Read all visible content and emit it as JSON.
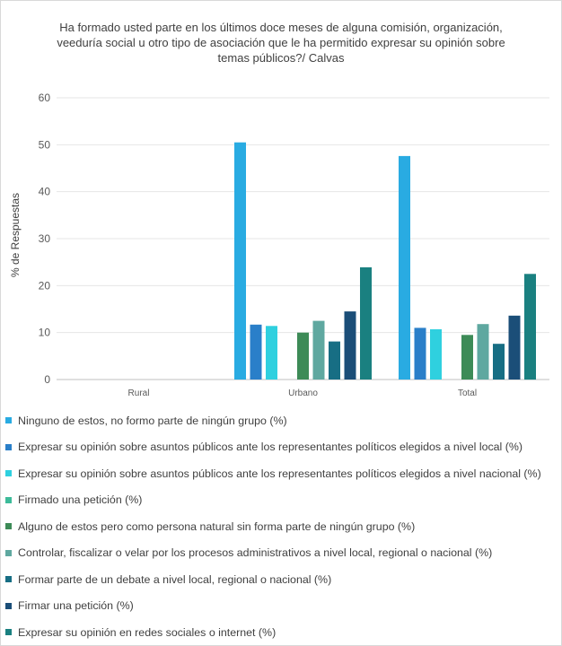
{
  "chart_data": {
    "type": "bar",
    "title": "Ha formado usted parte en los últimos doce meses de alguna comisión, organización,\nveeduría social u otro tipo de asociación que le ha permitido expresar su opinión sobre\ntemas públicos?/ Calvas",
    "ylabel": "% de Respuestas",
    "xlabel": "",
    "ylim": [
      0,
      60
    ],
    "yticks": [
      0,
      10,
      20,
      30,
      40,
      50,
      60
    ],
    "grid": true,
    "legend_position": "bottom",
    "categories": [
      "Rural",
      "Urbano",
      "Total"
    ],
    "series": [
      {
        "name": "Ninguno de estos, no formo parte de ningún grupo (%)",
        "color": "#29ABE2",
        "values": [
          null,
          50.5,
          47.6
        ]
      },
      {
        "name": "Expresar su opinión sobre asuntos públicos ante los representantes políticos elegidos a nivel local (%)",
        "color": "#2A7FC9",
        "values": [
          null,
          11.7,
          11.0
        ]
      },
      {
        "name": "Expresar su opinión sobre asuntos públicos ante los representantes políticos elegidos a nivel nacional (%)",
        "color": "#2FD0DF",
        "values": [
          null,
          11.4,
          10.7
        ]
      },
      {
        "name": "Firmado una petición (%)",
        "color": "#3DBB9A",
        "values": [
          null,
          null,
          null
        ]
      },
      {
        "name": "Alguno de estos pero como persona natural sin forma parte de ningún grupo (%)",
        "color": "#3D8B57",
        "values": [
          null,
          10.0,
          9.5
        ]
      },
      {
        "name": "Controlar, fiscalizar o velar por los procesos administrativos a nivel local, regional o nacional (%)",
        "color": "#5FA8A0",
        "values": [
          null,
          12.5,
          11.8
        ]
      },
      {
        "name": "Formar parte de un debate a nivel local, regional o nacional (%)",
        "color": "#176E84",
        "values": [
          null,
          8.1,
          7.6
        ]
      },
      {
        "name": "Firmar una petición (%)",
        "color": "#1B4E78",
        "values": [
          null,
          14.5,
          13.6
        ]
      },
      {
        "name": "Expresar su opinión en redes sociales o internet (%)",
        "color": "#1A8080",
        "values": [
          null,
          23.9,
          22.5
        ]
      }
    ]
  }
}
